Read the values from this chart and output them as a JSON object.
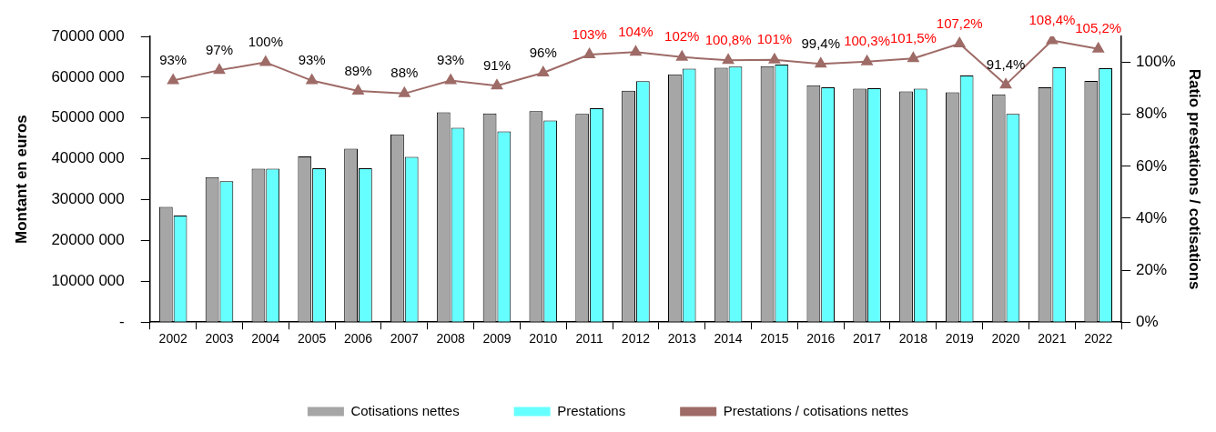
{
  "chart_data": {
    "type": "bar",
    "categories": [
      "2002",
      "2003",
      "2004",
      "2005",
      "2006",
      "2007",
      "2008",
      "2009",
      "2010",
      "2011",
      "2012",
      "2013",
      "2014",
      "2015",
      "2016",
      "2017",
      "2018",
      "2019",
      "2020",
      "2021",
      "2022"
    ],
    "series": [
      {
        "name": "Cotisations nettes",
        "color": "#a6a6a6",
        "values": [
          28200000,
          35500000,
          37600000,
          40600000,
          42500000,
          46000000,
          51400000,
          51100000,
          51700000,
          51000000,
          56700000,
          60700000,
          62300000,
          62700000,
          58000000,
          57200000,
          56500000,
          56300000,
          55800000,
          57500000,
          59100000
        ]
      },
      {
        "name": "Prestations",
        "color": "#66ffff",
        "values": [
          26100000,
          34500000,
          37600000,
          37700000,
          37700000,
          40500000,
          47600000,
          46700000,
          49400000,
          52400000,
          59000000,
          62100000,
          62600000,
          63100000,
          57500000,
          57300000,
          57200000,
          60400000,
          51000000,
          62400000,
          62200000
        ]
      },
      {
        "name": "Prestations / cotisations nettes",
        "type": "line",
        "axis": "y2",
        "color": "#9e6b67",
        "marker": "triangle",
        "values": [
          93,
          97,
          100,
          93,
          89,
          88,
          93,
          91,
          96,
          103,
          104,
          102,
          100.8,
          101,
          99.4,
          100.3,
          101.5,
          107.2,
          91.4,
          108.4,
          105.2
        ],
        "value_labels": [
          "93%",
          "97%",
          "100%",
          "93%",
          "89%",
          "88%",
          "93%",
          "91%",
          "96%",
          "103%",
          "104%",
          "102%",
          "100,8%",
          "101%",
          "99,4%",
          "100,3%",
          "101,5%",
          "107,2%",
          "91,4%",
          "108,4%",
          "105,2%"
        ]
      }
    ],
    "ylabel": "Montant en euros",
    "y2label": "Ratio prestations / cotisations",
    "ylim": [
      0,
      70000000
    ],
    "yticks": [
      {
        "value": 0,
        "label": "-"
      },
      {
        "value": 10000000,
        "label": "10000 000"
      },
      {
        "value": 20000000,
        "label": "20000 000"
      },
      {
        "value": 30000000,
        "label": "30000 000"
      },
      {
        "value": 40000000,
        "label": "40000 000"
      },
      {
        "value": 50000000,
        "label": "50000 000"
      },
      {
        "value": 60000000,
        "label": "60000 000"
      },
      {
        "value": 70000000,
        "label": "70000 000"
      }
    ],
    "y2lim": [
      0,
      110
    ],
    "y2ticks": [
      {
        "value": 0,
        "label": "0%"
      },
      {
        "value": 20,
        "label": "20%"
      },
      {
        "value": 40,
        "label": "40%"
      },
      {
        "value": 60,
        "label": "60%"
      },
      {
        "value": 80,
        "label": "80%"
      },
      {
        "value": 100,
        "label": "100%"
      }
    ],
    "legend": "bottom",
    "grid": false
  }
}
